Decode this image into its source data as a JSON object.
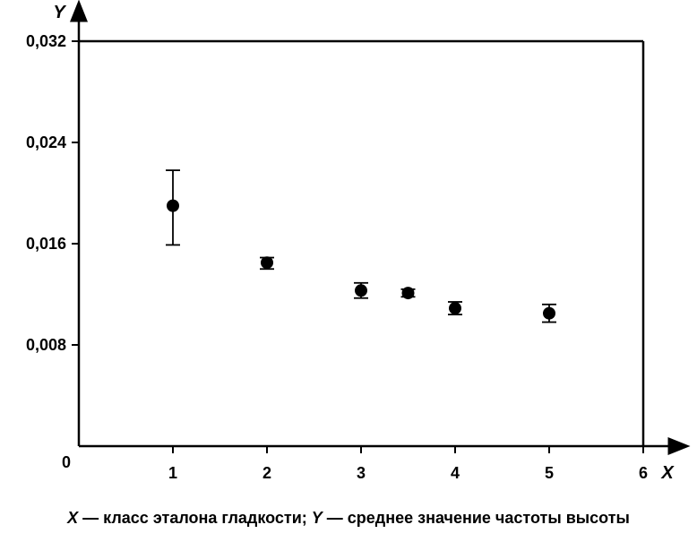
{
  "chart_data": {
    "type": "scatter",
    "title": "",
    "xlabel": "X",
    "ylabel": "Y",
    "xlim": [
      0,
      6
    ],
    "ylim": [
      0,
      0.032
    ],
    "x_ticks": [
      {
        "value": 1,
        "label": "1"
      },
      {
        "value": 2,
        "label": "2"
      },
      {
        "value": 3,
        "label": "3"
      },
      {
        "value": 4,
        "label": "4"
      },
      {
        "value": 5,
        "label": "5"
      },
      {
        "value": 6,
        "label": "6"
      }
    ],
    "y_ticks": [
      {
        "value": 0.008,
        "label": "0,008"
      },
      {
        "value": 0.016,
        "label": "0,016"
      },
      {
        "value": 0.024,
        "label": "0,024"
      },
      {
        "value": 0.032,
        "label": "0,032"
      }
    ],
    "origin_label": "0",
    "grid": false,
    "points": [
      {
        "x": 1.0,
        "y": 0.019,
        "err_low": 0.0159,
        "err_high": 0.0218
      },
      {
        "x": 2.0,
        "y": 0.0145,
        "err_low": 0.014,
        "err_high": 0.0149
      },
      {
        "x": 3.0,
        "y": 0.0123,
        "err_low": 0.0117,
        "err_high": 0.0129
      },
      {
        "x": 3.5,
        "y": 0.0121,
        "err_low": 0.0118,
        "err_high": 0.0124
      },
      {
        "x": 4.0,
        "y": 0.0109,
        "err_low": 0.0104,
        "err_high": 0.0114
      },
      {
        "x": 5.0,
        "y": 0.0105,
        "err_low": 0.0098,
        "err_high": 0.0112
      }
    ]
  },
  "caption": {
    "x_symbol": "X",
    "x_text": " — класс эталона гладкости; ",
    "y_symbol": "Y",
    "y_text": " — среднее значение частоты высоты"
  }
}
